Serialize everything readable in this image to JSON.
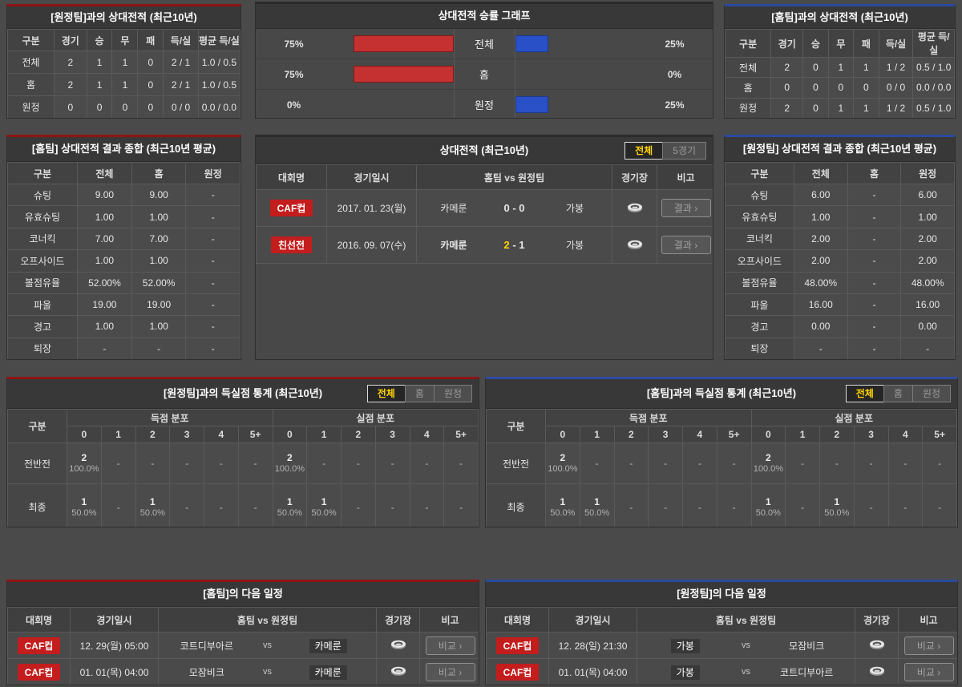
{
  "colors": {
    "accent_home": "#8e1414",
    "accent_away": "#2c4a9e",
    "bar_red": "#c53030",
    "bar_blue": "#2a50c8",
    "badge_red": "#c31d1d",
    "active_tab_text": "#ffd400"
  },
  "empty_cell": "-",
  "h2h_vs_away": {
    "title": "[원정팀]과의 상대전적 (최근10년)",
    "headers": [
      "구분",
      "경기",
      "승",
      "무",
      "패",
      "득/실",
      "평균 득/실"
    ],
    "rows": [
      [
        "전체",
        "2",
        "1",
        "1",
        "0",
        "2 / 1",
        "1.0 / 0.5"
      ],
      [
        "홈",
        "2",
        "1",
        "1",
        "0",
        "2 / 1",
        "1.0 / 0.5"
      ],
      [
        "원정",
        "0",
        "0",
        "0",
        "0",
        "0 / 0",
        "0.0 / 0.0"
      ]
    ]
  },
  "winrate_chart": {
    "title": "상대전적 승률 그래프",
    "rows": [
      {
        "label": "전체",
        "left_pct": 75,
        "left_label": "75%",
        "right_pct": 25,
        "right_label": "25%"
      },
      {
        "label": "홈",
        "left_pct": 75,
        "left_label": "75%",
        "right_pct": 0,
        "right_label": "0%"
      },
      {
        "label": "원정",
        "left_pct": 0,
        "left_label": "0%",
        "right_pct": 25,
        "right_label": "25%"
      }
    ]
  },
  "h2h_vs_home": {
    "title": "[홈팀]과의 상대전적 (최근10년)",
    "headers": [
      "구분",
      "경기",
      "승",
      "무",
      "패",
      "득/실",
      "평균 득/실"
    ],
    "rows": [
      [
        "전체",
        "2",
        "0",
        "1",
        "1",
        "1 / 2",
        "0.5 / 1.0"
      ],
      [
        "홈",
        "0",
        "0",
        "0",
        "0",
        "0 / 0",
        "0.0 / 0.0"
      ],
      [
        "원정",
        "2",
        "0",
        "1",
        "1",
        "1 / 2",
        "0.5 / 1.0"
      ]
    ]
  },
  "summary_home": {
    "title": "[홈팀] 상대전적 결과 종합 (최근10년 평균)",
    "headers": [
      "구분",
      "전체",
      "홈",
      "원정"
    ],
    "rows": [
      [
        "슈팅",
        "9.00",
        "9.00",
        "-"
      ],
      [
        "유효슈팅",
        "1.00",
        "1.00",
        "-"
      ],
      [
        "코너킥",
        "7.00",
        "7.00",
        "-"
      ],
      [
        "오프사이드",
        "1.00",
        "1.00",
        "-"
      ],
      [
        "볼점유율",
        "52.00%",
        "52.00%",
        "-"
      ],
      [
        "파울",
        "19.00",
        "19.00",
        "-"
      ],
      [
        "경고",
        "1.00",
        "1.00",
        "-"
      ],
      [
        "퇴장",
        "-",
        "-",
        "-"
      ]
    ]
  },
  "matches": {
    "title": "상대전적 (최근10년)",
    "tabs": [
      "전체",
      "5경기"
    ],
    "active_tab": 0,
    "headers": [
      "대회명",
      "경기일시",
      "홈팀 vs 원정팀",
      "경기장",
      "비고"
    ],
    "rows": [
      {
        "badge": "CAF컵",
        "date": "2017. 01. 23(월)",
        "home": "카메룬",
        "home_score": "0",
        "away_score": "0",
        "away": "가봉",
        "winner": "none",
        "button": "결과 ›"
      },
      {
        "badge": "친선전",
        "date": "2016. 09. 07(수)",
        "home": "카메룬",
        "home_score": "2",
        "away_score": "1",
        "away": "가봉",
        "winner": "home",
        "button": "결과 ›"
      }
    ]
  },
  "summary_away": {
    "title": "[원정팀] 상대전적 결과 종합 (최근10년 평균)",
    "headers": [
      "구분",
      "전체",
      "홈",
      "원정"
    ],
    "rows": [
      [
        "슈팅",
        "6.00",
        "-",
        "6.00"
      ],
      [
        "유효슈팅",
        "1.00",
        "-",
        "1.00"
      ],
      [
        "코너킥",
        "2.00",
        "-",
        "2.00"
      ],
      [
        "오프사이드",
        "2.00",
        "-",
        "2.00"
      ],
      [
        "볼점유율",
        "48.00%",
        "-",
        "48.00%"
      ],
      [
        "파울",
        "16.00",
        "-",
        "16.00"
      ],
      [
        "경고",
        "0.00",
        "-",
        "0.00"
      ],
      [
        "퇴장",
        "-",
        "-",
        "-"
      ]
    ]
  },
  "goals_vs_away": {
    "title": "[원정팀]과의 득실점 통계 (최근10년)",
    "tabs": [
      "전체",
      "홈",
      "원정"
    ],
    "active_tab": 0,
    "corner_header": "구분",
    "group_headers": [
      "득점 분포",
      "실점 분포"
    ],
    "score_cols": [
      "0",
      "1",
      "2",
      "3",
      "4",
      "5+"
    ],
    "rows": [
      {
        "label": "전반전",
        "scored": [
          {
            "count": "2",
            "pct": "100.0%"
          },
          null,
          null,
          null,
          null,
          null
        ],
        "conceded": [
          {
            "count": "2",
            "pct": "100.0%"
          },
          null,
          null,
          null,
          null,
          null
        ]
      },
      {
        "label": "최종",
        "scored": [
          {
            "count": "1",
            "pct": "50.0%"
          },
          null,
          {
            "count": "1",
            "pct": "50.0%"
          },
          null,
          null,
          null
        ],
        "conceded": [
          {
            "count": "1",
            "pct": "50.0%"
          },
          {
            "count": "1",
            "pct": "50.0%"
          },
          null,
          null,
          null,
          null
        ]
      }
    ]
  },
  "goals_vs_home": {
    "title": "[홈팀]과의 득실점 통계 (최근10년)",
    "tabs": [
      "전체",
      "홈",
      "원정"
    ],
    "active_tab": 0,
    "corner_header": "구분",
    "group_headers": [
      "득점 분포",
      "실점 분포"
    ],
    "score_cols": [
      "0",
      "1",
      "2",
      "3",
      "4",
      "5+"
    ],
    "rows": [
      {
        "label": "전반전",
        "scored": [
          {
            "count": "2",
            "pct": "100.0%"
          },
          null,
          null,
          null,
          null,
          null
        ],
        "conceded": [
          {
            "count": "2",
            "pct": "100.0%"
          },
          null,
          null,
          null,
          null,
          null
        ]
      },
      {
        "label": "최종",
        "scored": [
          {
            "count": "1",
            "pct": "50.0%"
          },
          {
            "count": "1",
            "pct": "50.0%"
          },
          null,
          null,
          null,
          null
        ],
        "conceded": [
          {
            "count": "1",
            "pct": "50.0%"
          },
          null,
          {
            "count": "1",
            "pct": "50.0%"
          },
          null,
          null,
          null
        ]
      }
    ]
  },
  "schedule_home": {
    "title": "[홈팀]의 다음 일정",
    "headers": [
      "대회명",
      "경기일시",
      "홈팀 vs 원정팀",
      "경기장",
      "비고"
    ],
    "vs_label": "vs",
    "rows": [
      {
        "badge": "CAF컵",
        "date": "12. 29(월) 05:00",
        "home": "코트디부아르",
        "away": "카메룬",
        "highlight": "away",
        "button": "비교 ›"
      },
      {
        "badge": "CAF컵",
        "date": "01. 01(목) 04:00",
        "home": "모잠비크",
        "away": "카메룬",
        "highlight": "away",
        "button": "비교 ›"
      }
    ]
  },
  "schedule_away": {
    "title": "[원정팀]의 다음 일정",
    "headers": [
      "대회명",
      "경기일시",
      "홈팀 vs 원정팀",
      "경기장",
      "비고"
    ],
    "vs_label": "vs",
    "rows": [
      {
        "badge": "CAF컵",
        "date": "12. 28(일) 21:30",
        "home": "가봉",
        "away": "모잠비크",
        "highlight": "home",
        "button": "비교 ›"
      },
      {
        "badge": "CAF컵",
        "date": "01. 01(목) 04:00",
        "home": "가봉",
        "away": "코트디부아르",
        "highlight": "home",
        "button": "비교 ›"
      }
    ]
  },
  "chart_data": {
    "type": "bar",
    "title": "상대전적 승률 그래프",
    "categories": [
      "전체",
      "홈",
      "원정"
    ],
    "series": [
      {
        "name": "red-left",
        "values": [
          75,
          75,
          0
        ]
      },
      {
        "name": "blue-right",
        "values": [
          25,
          0,
          25
        ]
      }
    ],
    "unit": "%",
    "xlim": [
      0,
      100
    ]
  }
}
